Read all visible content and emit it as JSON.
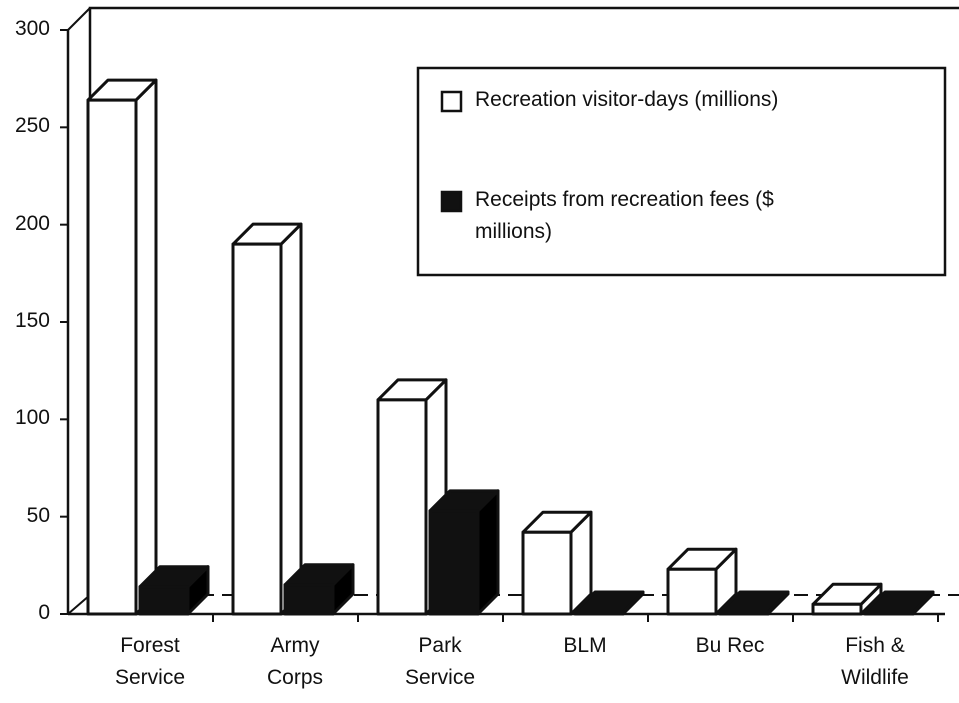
{
  "chart_data": {
    "type": "bar3d",
    "categories": [
      "Forest Service",
      "Army Corps",
      "Park Service",
      "BLM",
      "Bu Rec",
      "Fish & Wildlife"
    ],
    "series": [
      {
        "name": "Recreation visitor-days (millions)",
        "color": "#ffffff",
        "values": [
          264,
          190,
          110,
          42,
          23,
          5
        ]
      },
      {
        "name": "Receipts from recreation fees ($ millions)",
        "color": "#111111",
        "values": [
          14,
          15,
          53,
          1,
          1,
          1
        ]
      }
    ],
    "ylim": [
      0,
      300
    ],
    "yticks": [
      0,
      50,
      100,
      150,
      200,
      250,
      300
    ]
  }
}
